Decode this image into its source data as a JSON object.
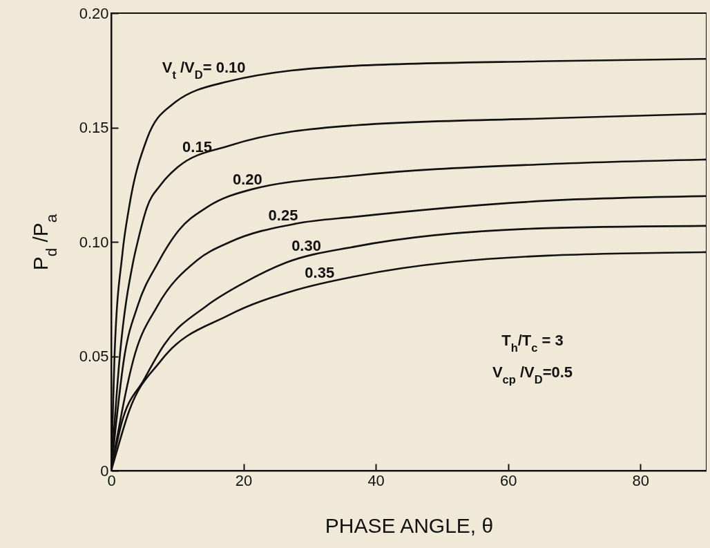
{
  "chart_data": {
    "type": "line",
    "xlabel": "PHASE ANGLE, θ",
    "ylabel": "P$_{d}$ /P$_{a}$",
    "xlim": [
      0,
      90
    ],
    "xticks": [
      0,
      20,
      40,
      60,
      80
    ],
    "ylim": [
      0,
      0.2
    ],
    "yticks": [
      0,
      0.05,
      {
        "value": 0.1,
        "label": "0.10"
      },
      0.15,
      {
        "value": 0.2,
        "label": "0.20"
      }
    ],
    "grid": false,
    "legend": false,
    "marker": "none",
    "line_style": "solid",
    "annotations": [
      "T$_{h}$/T$_{c}$ = 3",
      "V$_{cp}$ /V$_{D}$=0.5"
    ],
    "series": [
      {
        "name": "V$_{t}$ /V$_{D}$= 0.10",
        "color": "#111111",
        "x": [
          0,
          0.5,
          1.7,
          2.7,
          5.4,
          9.2,
          17.5,
          37,
          66,
          90
        ],
        "values": [
          0,
          0.05,
          0.095,
          0.115,
          0.145,
          0.16,
          0.17,
          0.177,
          0.179,
          0.18
        ]
      },
      {
        "name": "0.15",
        "color": "#111111",
        "x": [
          0,
          1.3,
          3.3,
          4,
          5.4,
          7.5,
          10.2,
          17.8,
          37,
          66,
          90
        ],
        "values": [
          0,
          0.05,
          0.091,
          0.1,
          0.115,
          0.125,
          0.133,
          0.142,
          0.151,
          0.154,
          0.156
        ]
      },
      {
        "name": "0.20",
        "color": "#111111",
        "x": [
          0,
          2,
          4,
          7.1,
          10.2,
          14.4,
          21.3,
          37,
          66,
          90
        ],
        "values": [
          0,
          0.05,
          0.072,
          0.091,
          0.105,
          0.115,
          0.123,
          0.129,
          0.134,
          0.136
        ]
      },
      {
        "name": "0.25",
        "color": "#111111",
        "x": [
          0,
          3.5,
          7,
          13,
          18,
          28,
          37,
          66,
          90
        ],
        "values": [
          0,
          0.05,
          0.072,
          0.092,
          0.1,
          0.108,
          0.111,
          0.118,
          0.12
        ]
      },
      {
        "name": "0.30",
        "color": "#111111",
        "x": [
          0,
          1.5,
          5,
          8,
          14.4,
          20,
          26.5,
          37,
          66,
          90
        ],
        "values": [
          0,
          0.02,
          0.04,
          0.055,
          0.072,
          0.082,
          0.091,
          0.098,
          0.106,
          0.107
        ]
      },
      {
        "name": "0.35",
        "color": "#111111",
        "x": [
          0,
          0.6,
          2.7,
          7.5,
          17.8,
          28,
          37,
          66,
          90
        ],
        "values": [
          0,
          0.006,
          0.026,
          0.048,
          0.068,
          0.079,
          0.085,
          0.094,
          0.0955
        ]
      }
    ]
  }
}
